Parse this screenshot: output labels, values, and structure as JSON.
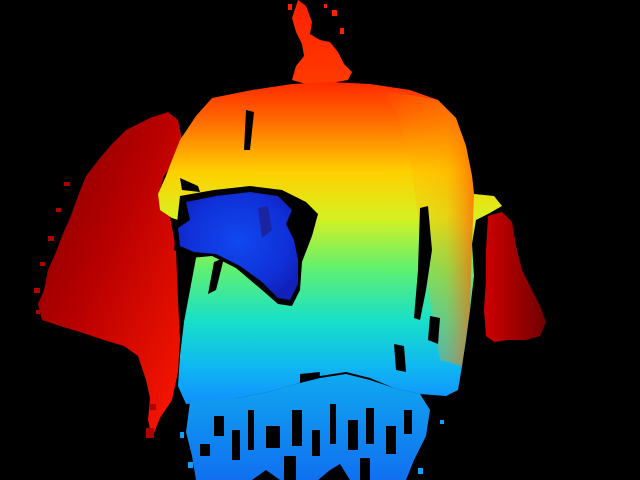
{
  "image": {
    "kind": "depth-map",
    "colormap": "jet",
    "background_color": "#000000",
    "palette": {
      "near": "#1038e0",
      "mid_near": "#10c8f0",
      "mid": "#60f080",
      "mid_far": "#f8f020",
      "far": "#ff5000",
      "farthest": "#8a0000"
    }
  }
}
